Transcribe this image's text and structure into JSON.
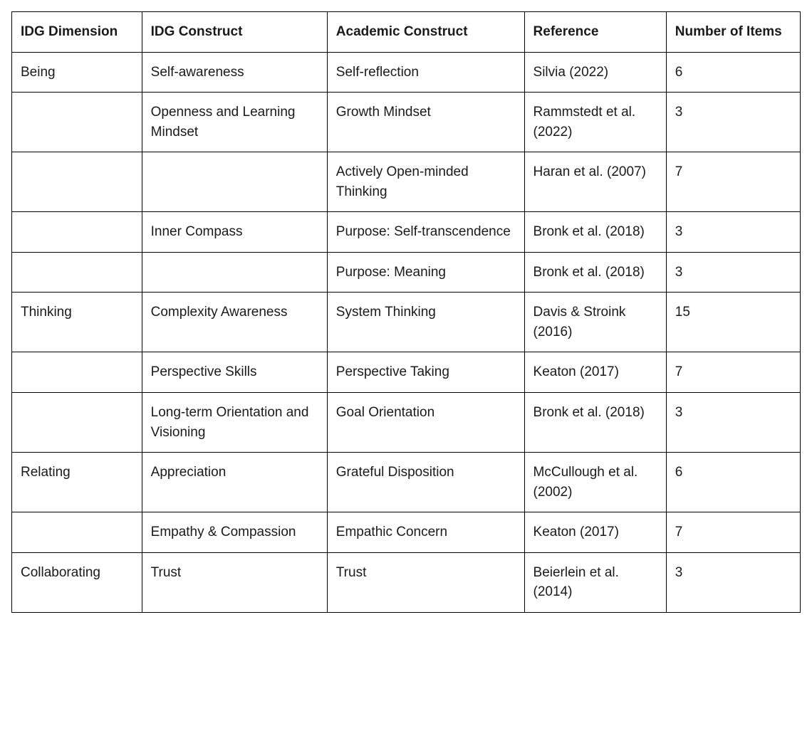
{
  "table": {
    "columns": [
      "IDG Dimension",
      "IDG Construct",
      "Academic Construct",
      "Reference",
      "Number of Items"
    ],
    "column_widths_pct": [
      16.5,
      23.5,
      25,
      18,
      17
    ],
    "header_fontsize_pt": 15,
    "cell_fontsize_pt": 15,
    "header_fontweight": 700,
    "cell_fontweight": 400,
    "border_color": "#000000",
    "background_color": "#ffffff",
    "text_color": "#1a1a1a",
    "rows": [
      [
        "Being",
        "Self-awareness",
        "Self-reflection",
        "Silvia (2022)",
        "6"
      ],
      [
        "",
        "Openness and Learning Mindset",
        "Growth Mindset",
        "Rammstedt et al. (2022)",
        "3"
      ],
      [
        "",
        "",
        "Actively Open-minded Thinking",
        "Haran et al. (2007)",
        "7"
      ],
      [
        "",
        "Inner Compass",
        "Purpose: Self-transcendence",
        "Bronk et al. (2018)",
        "3"
      ],
      [
        "",
        "",
        "Purpose: Meaning",
        "Bronk et al. (2018)",
        "3"
      ],
      [
        "Thinking",
        "Complexity Awareness",
        "System Thinking",
        "Davis & Stroink (2016)",
        "15"
      ],
      [
        "",
        "Perspective Skills",
        "Perspective Taking",
        "Keaton (2017)",
        "7"
      ],
      [
        "",
        "Long-term Orientation and Visioning",
        "Goal Orientation",
        "Bronk et al. (2018)",
        "3"
      ],
      [
        "Relating",
        "Appreciation",
        "Grateful Disposition",
        "McCullough et al. (2002)",
        "6"
      ],
      [
        "",
        "Empathy & Compassion",
        "Empathic Concern",
        "Keaton (2017)",
        "7"
      ],
      [
        "Collaborating",
        "Trust",
        "Trust",
        "Beierlein et al. (2014)",
        "3"
      ]
    ]
  }
}
